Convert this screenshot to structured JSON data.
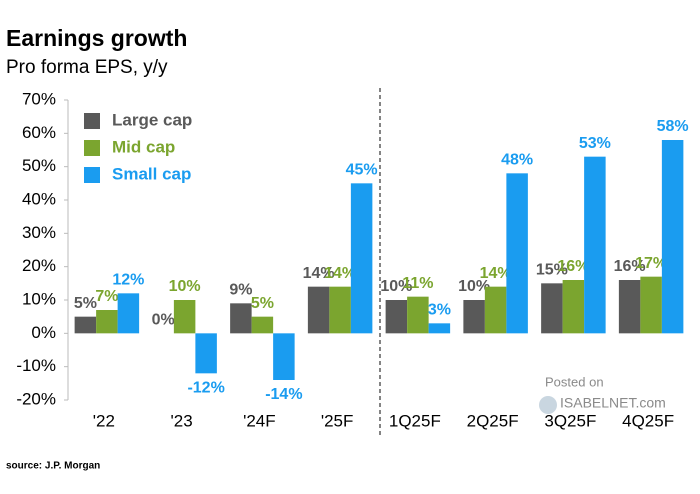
{
  "chart_data": {
    "type": "bar",
    "title": "Earnings growth",
    "subtitle": "Pro forma EPS, y/y",
    "source": "source: J.P. Morgan",
    "watermark": [
      "Posted on",
      "ISABELNET.com"
    ],
    "categories": [
      "'22",
      "'23",
      "'24F",
      "'25F",
      "1Q25F",
      "2Q25F",
      "3Q25F",
      "4Q25F"
    ],
    "series": [
      {
        "name": "Large cap",
        "color": "#595959",
        "values": [
          5,
          0,
          9,
          14,
          10,
          10,
          15,
          16
        ],
        "value_labels": [
          "5%",
          "0%",
          "9%",
          "14%",
          "10%",
          "10%",
          "15%",
          "16%"
        ]
      },
      {
        "name": "Mid cap",
        "color": "#7ba52f",
        "values": [
          7,
          10,
          5,
          14,
          11,
          14,
          16,
          17
        ],
        "value_labels": [
          "7%",
          "10%",
          "5%",
          "14%",
          "11%",
          "14%",
          "16%",
          "17%"
        ]
      },
      {
        "name": "Small cap",
        "color": "#1a9cf0",
        "values": [
          12,
          -12,
          -14,
          45,
          3,
          48,
          53,
          58
        ],
        "value_labels": [
          "12%",
          "-12%",
          "-14%",
          "45%",
          "3%",
          "48%",
          "53%",
          "58%"
        ]
      }
    ],
    "ylim": [
      -20,
      70
    ],
    "yticks": [
      {
        "value": -20,
        "label": "-20%"
      },
      {
        "value": -10,
        "label": "-10%"
      },
      {
        "value": 0,
        "label": "0%"
      },
      {
        "value": 10,
        "label": "10%"
      },
      {
        "value": 20,
        "label": "20%"
      },
      {
        "value": 30,
        "label": "30%"
      },
      {
        "value": 40,
        "label": "40%"
      },
      {
        "value": 50,
        "label": "50%"
      },
      {
        "value": 60,
        "label": "60%"
      },
      {
        "value": 70,
        "label": "70%"
      }
    ],
    "legend": "upper left",
    "grid": false
  }
}
